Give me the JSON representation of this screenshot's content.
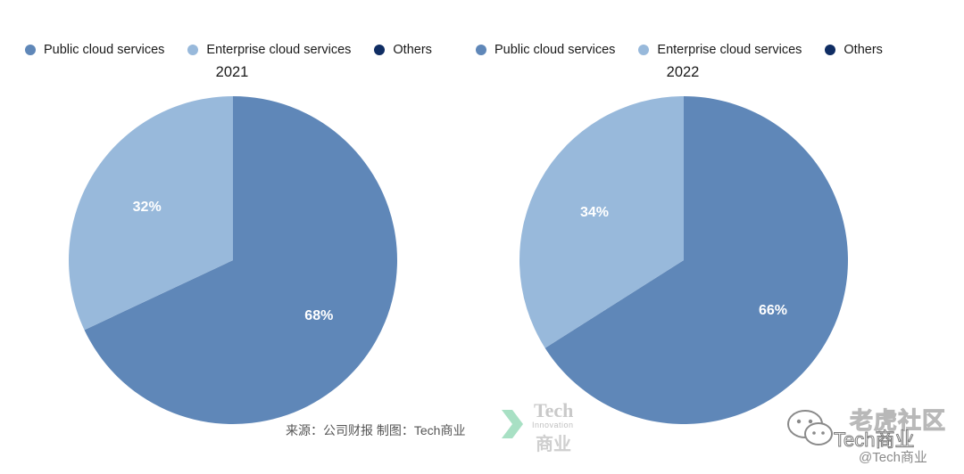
{
  "chart_data": [
    {
      "type": "pie",
      "title": "2021",
      "legend": [
        "Public cloud services",
        "Enterprise cloud services",
        "Others"
      ],
      "slices": [
        {
          "label": "Public cloud services",
          "value": 68,
          "text": "68%"
        },
        {
          "label": "Enterprise cloud services",
          "value": 32,
          "text": "32%"
        },
        {
          "label": "Others",
          "value": 0,
          "text": ""
        }
      ]
    },
    {
      "type": "pie",
      "title": "2022",
      "legend": [
        "Public cloud services",
        "Enterprise cloud services",
        "Others"
      ],
      "slices": [
        {
          "label": "Public cloud services",
          "value": 66,
          "text": "66%"
        },
        {
          "label": "Enterprise cloud services",
          "value": 34,
          "text": "34%"
        },
        {
          "label": "Others",
          "value": 0,
          "text": ""
        }
      ]
    }
  ],
  "colors": {
    "public": "#5f87b8",
    "enterprise": "#98b9db",
    "others": "#0f2d63",
    "logo_green": "#a8e0c4"
  },
  "footer": {
    "source": "来源：公司财报 制图：Tech商业",
    "logo_tech": "Tech",
    "logo_innovation": "Innovation",
    "logo_cn": "商业"
  },
  "watermark": {
    "line1": "老虎社区",
    "line2": "Tech商业",
    "line3": "@Tech商业",
    "icon": "wechat-icon"
  }
}
